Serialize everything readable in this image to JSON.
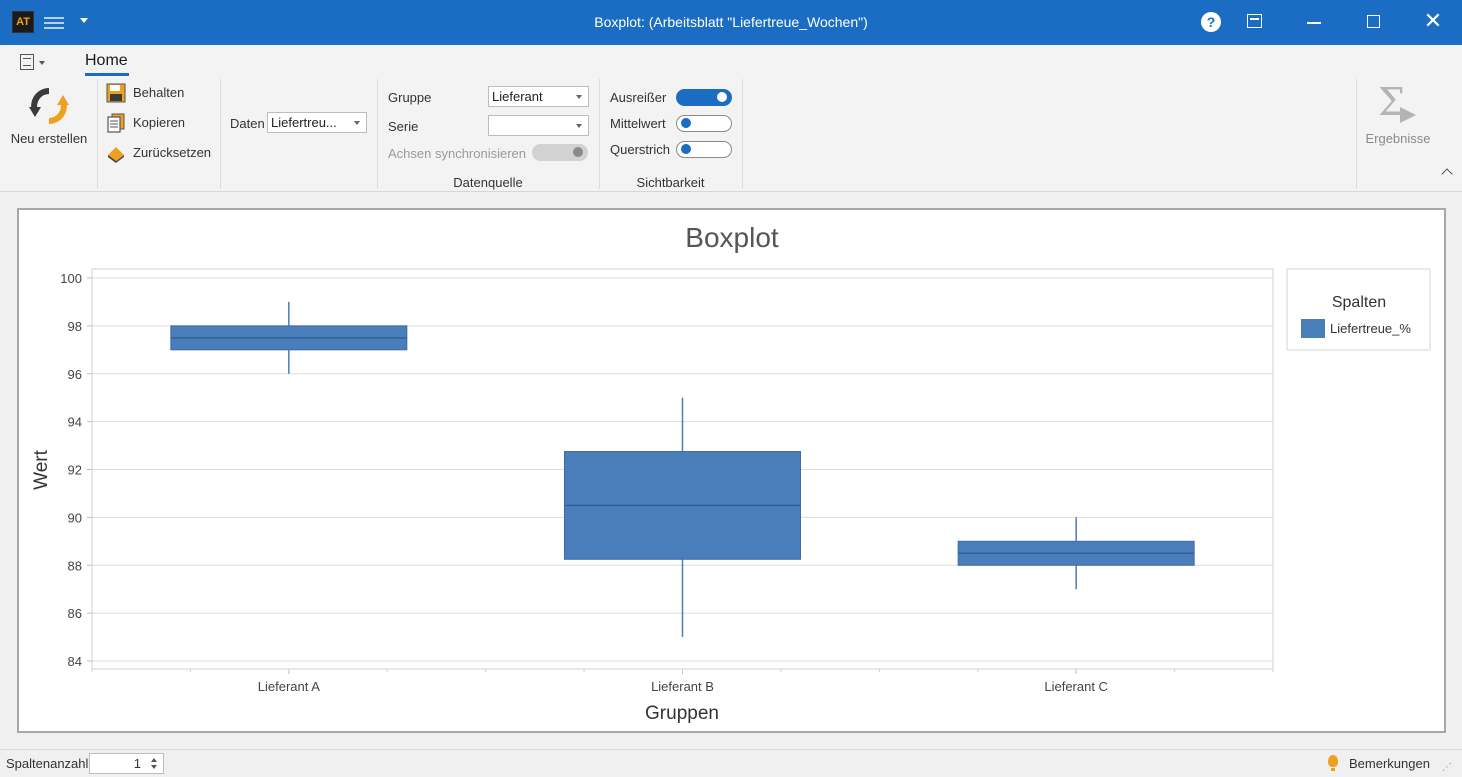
{
  "window": {
    "title": "Boxplot:  (Arbeitsblatt \"Liefertreue_Wochen\")",
    "app_icon_text": "AT",
    "icons": [
      "app-icon",
      "hamburger-menu-icon",
      "chevron-down-icon",
      "help-icon",
      "ribbon-display-icon",
      "minimize-icon",
      "maximize-icon",
      "close-icon"
    ]
  },
  "ribbon": {
    "tab_home": "Home",
    "neu_erstellen": "Neu erstellen",
    "behalten": "Behalten",
    "kopieren": "Kopieren",
    "zuruecksetzen": "Zurücksetzen",
    "daten_label": "Daten",
    "daten_value": "Liefertreu...",
    "gruppe_label": "Gruppe",
    "gruppe_value": "Lieferant",
    "serie_label": "Serie",
    "serie_value": "",
    "achsen_label": "Achsen synchronisieren",
    "datenquelle_caption": "Datenquelle",
    "ausreisser_label": "Ausreißer",
    "ausreisser_on": true,
    "mittelwert_label": "Mittelwert",
    "mittelwert_on": false,
    "querstrich_label": "Querstrich",
    "querstrich_on": false,
    "sichtbarkeit_caption": "Sichtbarkeit",
    "ergebnisse": "Ergebnisse",
    "accent_color": "#1a6dc2"
  },
  "chart_data": {
    "type": "boxplot",
    "title": "Boxplot",
    "xlabel": "Gruppen",
    "ylabel": "Wert",
    "ylim": [
      84,
      100
    ],
    "yticks": [
      84,
      86,
      88,
      90,
      92,
      94,
      96,
      98,
      100
    ],
    "categories": [
      "Lieferant A",
      "Lieferant B",
      "Lieferant C"
    ],
    "series": [
      {
        "name": "Liefertreue_%",
        "color": "#4a7ebb",
        "boxes": [
          {
            "category": "Lieferant A",
            "min": 96,
            "q1": 97,
            "median": 97.5,
            "q3": 98,
            "max": 99
          },
          {
            "category": "Lieferant B",
            "min": 85,
            "q1": 88.25,
            "median": 90.5,
            "q3": 92.75,
            "max": 95
          },
          {
            "category": "Lieferant C",
            "min": 87,
            "q1": 88,
            "median": 88.5,
            "q3": 89,
            "max": 90
          }
        ]
      }
    ],
    "legend": {
      "title": "Spalten",
      "position": "right",
      "entries": [
        "Liefertreue_%"
      ]
    },
    "grid": true
  },
  "statusbar": {
    "spaltenanzahl_label": "Spaltenanzahl",
    "spaltenanzahl_value": "1",
    "bemerkungen": "Bemerkungen"
  }
}
